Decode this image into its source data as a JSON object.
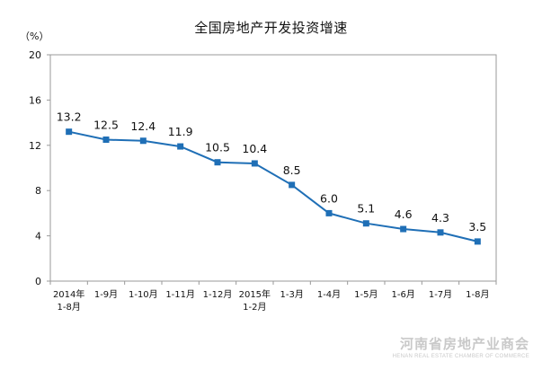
{
  "chart_data": {
    "type": "line",
    "title": "全国房地产开发投资增速",
    "ylabel": "（%）",
    "xlabel": "",
    "ylim": [
      0,
      20
    ],
    "yticks": [
      "0",
      "4",
      "8",
      "12",
      "16",
      "20"
    ],
    "grid": false,
    "categories": [
      [
        "2014年",
        "1-8月"
      ],
      [
        "1-9月"
      ],
      [
        "1-10月"
      ],
      [
        "1-11月"
      ],
      [
        "1-12月"
      ],
      [
        "2015年",
        "1-2月"
      ],
      [
        "1-3月"
      ],
      [
        "1-4月"
      ],
      [
        "1-5月"
      ],
      [
        "1-6月"
      ],
      [
        "1-7月"
      ],
      [
        "1-8月"
      ]
    ],
    "series": [
      {
        "values": [
          13.2,
          12.5,
          12.4,
          11.9,
          10.5,
          10.4,
          8.5,
          6.0,
          5.1,
          4.6,
          4.3,
          3.5
        ],
        "labels": [
          "13.2",
          "12.5",
          "12.4",
          "11.9",
          "10.5",
          "10.4",
          "8.5",
          "6.0",
          "5.1",
          "4.6",
          "4.3",
          "3.5"
        ],
        "color": "#1f6fb6"
      }
    ]
  },
  "watermark": {
    "main": "河南省房地产业商会",
    "sub": "HENAN REAL ESTATE CHAMBER OF COMMERCE"
  }
}
